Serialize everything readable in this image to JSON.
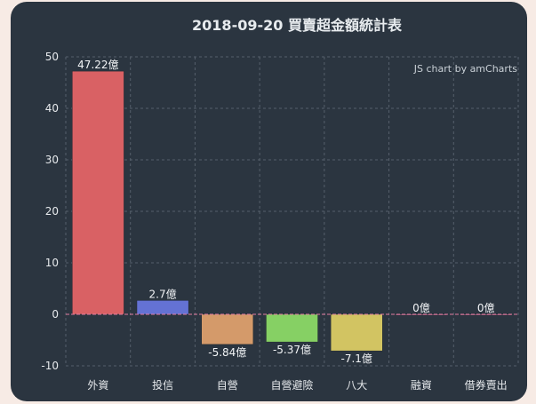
{
  "chart_data": {
    "type": "bar",
    "title": "2018-09-20 買賣超金額統計表",
    "credit": "JS chart by amCharts",
    "categories": [
      "外資",
      "投信",
      "自營",
      "自營避險",
      "八大",
      "融資",
      "借券賣出"
    ],
    "values": [
      47.22,
      2.7,
      -5.84,
      -5.37,
      -7.1,
      0,
      0
    ],
    "data_labels": [
      "47.22億",
      "2.7億",
      "-5.84億",
      "-5.37億",
      "-7.1億",
      "0億",
      "0億"
    ],
    "colors": [
      "#d96164",
      "#6472d4",
      "#d49a6a",
      "#86d064",
      "#d2c462",
      "#e07aa0",
      "#e07aa0"
    ],
    "y_ticks": [
      -10,
      0,
      10,
      20,
      30,
      40,
      50
    ],
    "ylim": [
      -10,
      50
    ],
    "xlabel": "",
    "ylabel": "",
    "grid": true,
    "legend": "none"
  }
}
